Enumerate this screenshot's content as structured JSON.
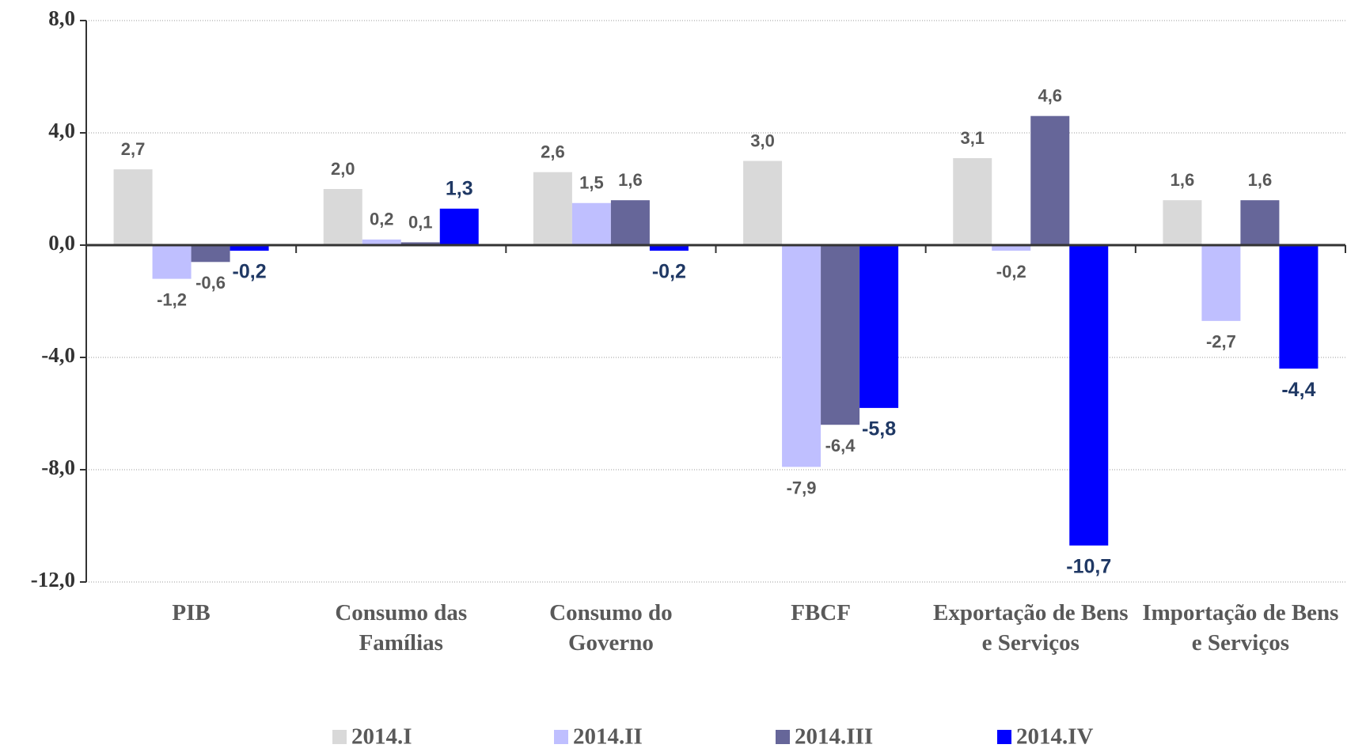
{
  "chart_data": {
    "type": "bar",
    "categories": [
      "PIB",
      "Consumo das Famílias",
      "Consumo do Governo",
      "FBCF",
      "Exportação de Bens e Serviços",
      "Importação de Bens e Serviços"
    ],
    "series": [
      {
        "name": "2014.I",
        "color": "#d9d9d9",
        "values": [
          2.7,
          2.0,
          2.6,
          3.0,
          3.1,
          1.6
        ],
        "value_labels": [
          "2,7",
          "2,0",
          "2,6",
          "3,0",
          "3,1",
          "1,6"
        ]
      },
      {
        "name": "2014.II",
        "color": "#bfbfff",
        "values": [
          -1.2,
          0.2,
          1.5,
          -7.9,
          -0.2,
          -2.7
        ],
        "value_labels": [
          "-1,2",
          "0,2",
          "1,5",
          "-7,9",
          "-0,2",
          "-2,7"
        ]
      },
      {
        "name": "2014.III",
        "color": "#666699",
        "values": [
          -0.6,
          0.1,
          1.6,
          -6.4,
          4.6,
          1.6
        ],
        "value_labels": [
          "-0,6",
          "0,1",
          "1,6",
          "-6,4",
          "4,6",
          "1,6"
        ]
      },
      {
        "name": "2014.IV",
        "color": "#0000ff",
        "values": [
          -0.2,
          1.3,
          -0.2,
          -5.8,
          -10.7,
          -4.4
        ],
        "value_labels": [
          "-0,2",
          "1,3",
          "-0,2",
          "-5,8",
          "-10,7",
          "-4,4"
        ]
      }
    ],
    "ylim": [
      -12,
      8
    ],
    "yticks": [
      {
        "value": -12,
        "label": "-12,0"
      },
      {
        "value": -8,
        "label": "-8,0"
      },
      {
        "value": -4,
        "label": "-4,0"
      },
      {
        "value": 0,
        "label": "0,0"
      },
      {
        "value": 4,
        "label": "4,0"
      },
      {
        "value": 8,
        "label": "8,0"
      }
    ],
    "grid": true,
    "legend": "bottom"
  }
}
